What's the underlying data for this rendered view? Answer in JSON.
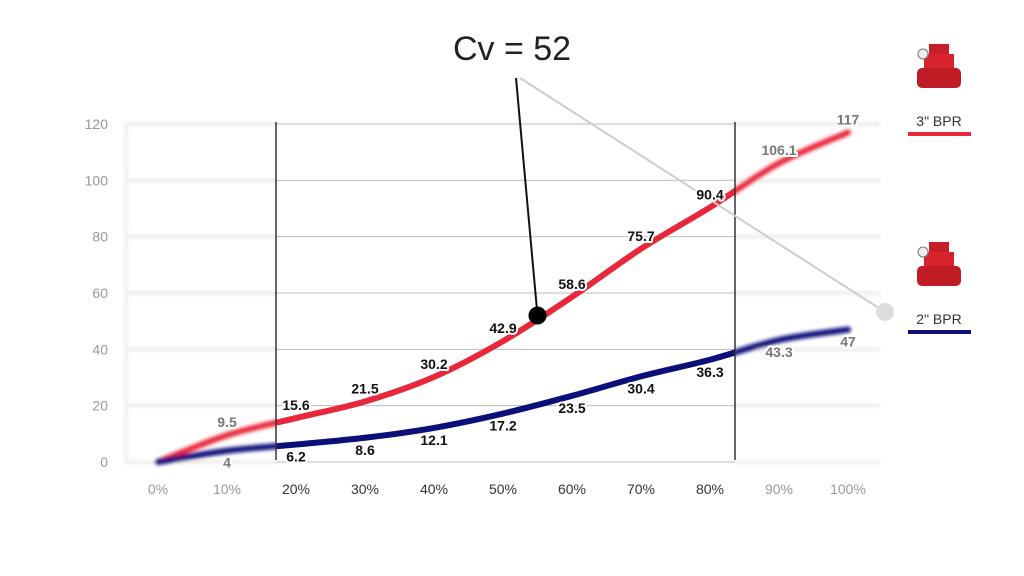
{
  "chart_data": {
    "type": "line",
    "title": "",
    "xlabel": "",
    "ylabel": "",
    "categories": [
      "0%",
      "10%",
      "20%",
      "30%",
      "40%",
      "50%",
      "60%",
      "70%",
      "80%",
      "90%",
      "100%"
    ],
    "x": [
      0,
      10,
      20,
      30,
      40,
      50,
      60,
      70,
      80,
      90,
      100
    ],
    "yticks": [
      "0",
      "20",
      "40",
      "60",
      "80",
      "100",
      "120"
    ],
    "ylim": [
      0,
      120
    ],
    "grid": true,
    "focus_range": [
      "20%",
      "80%"
    ],
    "series": [
      {
        "name": "3\" BPR",
        "color": "#e8273a",
        "values": [
          0,
          9.5,
          15.6,
          21.5,
          30.2,
          42.9,
          58.6,
          75.7,
          90.4,
          106.1,
          117
        ],
        "labels": [
          "0",
          "9.5",
          "15.6",
          "21.5",
          "30.2",
          "42.9",
          "58.6",
          "75.7",
          "90.4",
          "106.1",
          "117"
        ]
      },
      {
        "name": "2\" BPR",
        "color": "#0a0f7a",
        "values": [
          0,
          4,
          6.2,
          8.6,
          12.1,
          17.2,
          23.5,
          30.4,
          36.3,
          43.3,
          47
        ],
        "labels": [
          "0",
          "4",
          "6.2",
          "8.6",
          "12.1",
          "17.2",
          "23.5",
          "30.4",
          "36.3",
          "43.3",
          "47"
        ]
      }
    ],
    "annotation": {
      "text": "Cv = 52",
      "x": 55,
      "y": 52
    }
  },
  "legend": {
    "items": [
      {
        "label": "3\" BPR",
        "color": "#e8273a",
        "icon": "valve-image"
      },
      {
        "label": "2\" BPR",
        "color": "#0a0f7a",
        "icon": "valve-image"
      }
    ]
  }
}
